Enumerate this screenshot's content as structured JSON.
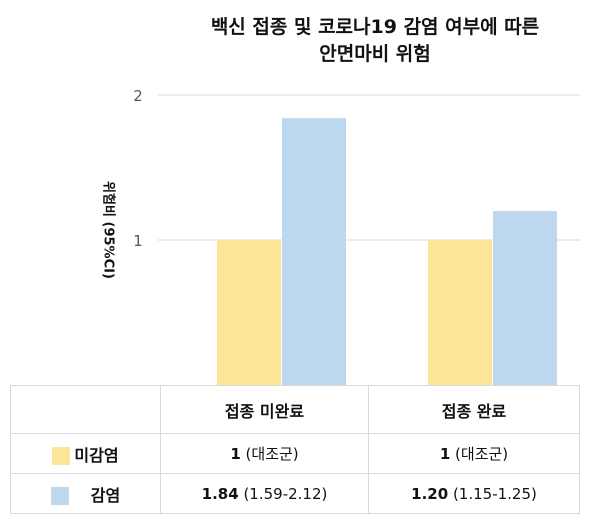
{
  "chart_data": {
    "type": "bar",
    "title": "백신 접종 및 코로나19 감염 여부에 따른 안면마비 위험",
    "title_lines": [
      "백신 접종 및 코로나19 감염 여부에 따른",
      "안면마비 위험"
    ],
    "ylabel": "위험비 (95%CI)",
    "ylim": [
      0,
      2
    ],
    "yticks": [
      "1",
      "2"
    ],
    "grid": true,
    "categories": [
      "접종 미완료",
      "접종 완료"
    ],
    "series": [
      {
        "name": "미감염",
        "values": [
          1,
          1
        ],
        "color": "#fde597",
        "labels": [
          {
            "value": "1",
            "ci": "(대조군)"
          },
          {
            "value": "1",
            "ci": "(대조군)"
          }
        ]
      },
      {
        "name": "감염",
        "values": [
          1.84,
          1.2
        ],
        "color": "#bdd7ee",
        "labels": [
          {
            "value": "1.84",
            "ci": "(1.59-2.12)"
          },
          {
            "value": "1.20",
            "ci": "(1.15-1.25)"
          }
        ]
      }
    ]
  }
}
